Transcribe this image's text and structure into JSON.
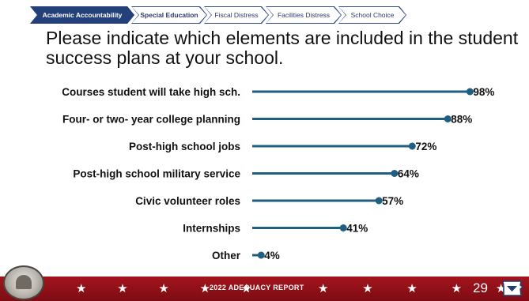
{
  "tabs": [
    {
      "label": "Academic Accountability",
      "state": "active"
    },
    {
      "label": "Special Education",
      "state": "semi"
    },
    {
      "label": "Fiscal Distress",
      "state": "normal"
    },
    {
      "label": "Facilities Distress",
      "state": "normal"
    },
    {
      "label": "School Choice",
      "state": "normal"
    }
  ],
  "title": "Please indicate which elements are included in the student success plans at your school.",
  "chart_data": {
    "type": "bar",
    "style": "lollipop",
    "orientation": "horizontal",
    "categories": [
      "Courses student will take high sch.",
      "Four- or two- year college planning",
      "Post-high school jobs",
      "Post-high school military service",
      "Civic volunteer roles",
      "Internships",
      "Other"
    ],
    "values": [
      98,
      88,
      72,
      64,
      57,
      41,
      4
    ],
    "value_labels": [
      "98%",
      "88%",
      "72%",
      "64%",
      "57%",
      "41%",
      "4%"
    ],
    "xlim": [
      0,
      100
    ],
    "color": "#1f5f82"
  },
  "footer": {
    "stars_left": "★ ★ ★ ★ ★",
    "report": "2022 ADEQUACY REPORT",
    "stars_right": "★ ★ ★ ★ ★",
    "page": "29",
    "color": "#9c1119"
  }
}
